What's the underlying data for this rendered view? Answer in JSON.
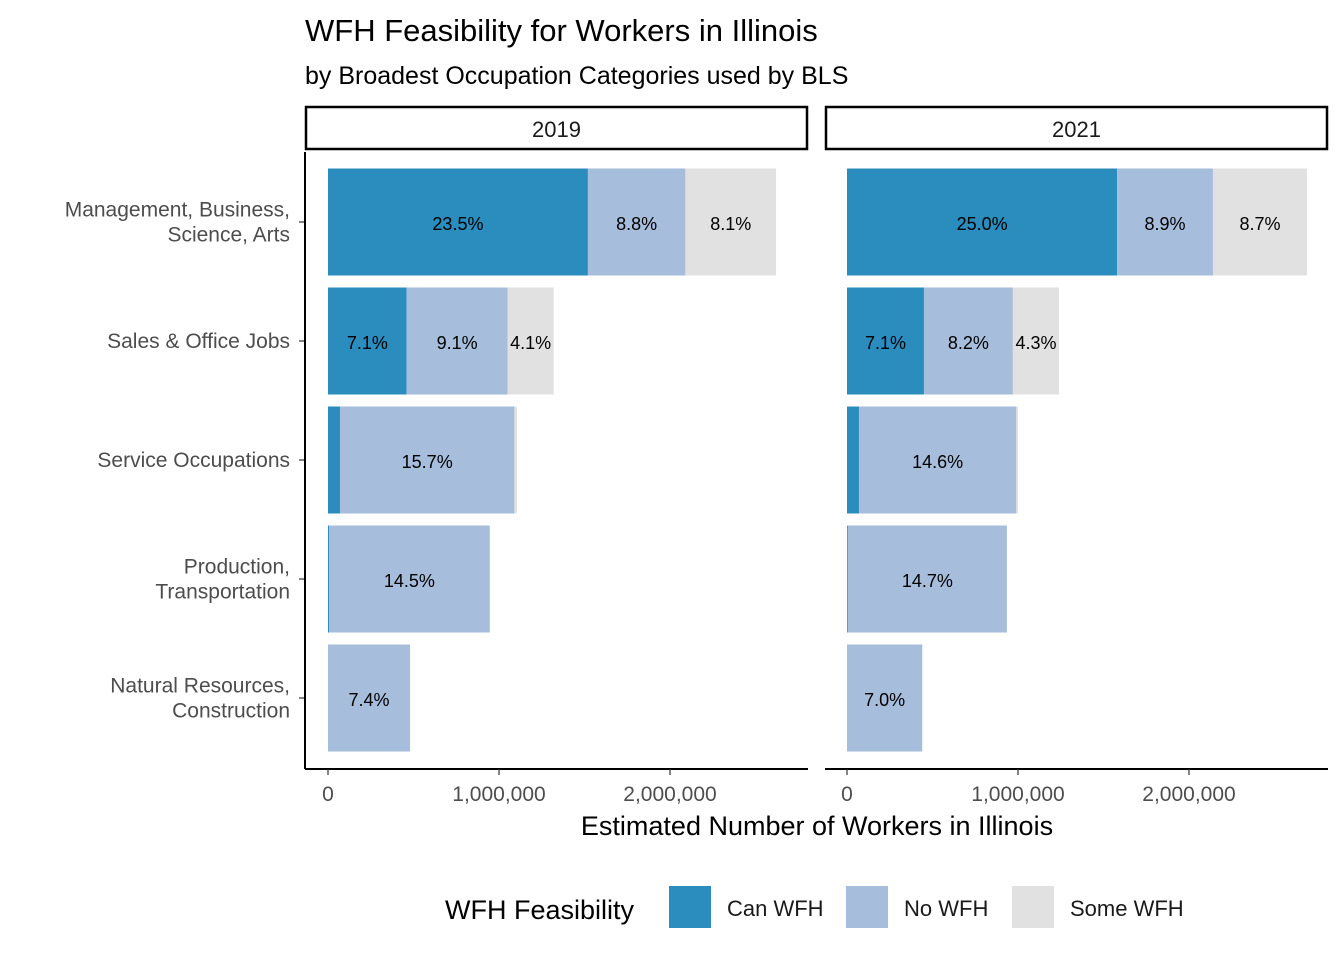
{
  "chart_data": {
    "type": "bar",
    "orientation": "horizontal",
    "stacked": true,
    "title": "WFH Feasibility for Workers in Illinois",
    "subtitle": "by Broadest Occupation Categories used by BLS",
    "xlabel": "Estimated Number of Workers in Illinois",
    "ylabel": "",
    "xlim": [
      0,
      2650000
    ],
    "xticks": [
      0,
      1000000,
      2000000
    ],
    "xtick_labels": [
      "0",
      "1,000,000",
      "2,000,000"
    ],
    "categories": [
      [
        "Management, Business,",
        "Science, Arts"
      ],
      [
        "Sales & Office Jobs"
      ],
      [
        "Service Occupations"
      ],
      [
        "Production,",
        "Transportation"
      ],
      [
        "Natural Resources,",
        "Construction"
      ]
    ],
    "legend": {
      "title": "WFH Feasibility",
      "position": "bottom",
      "entries": [
        {
          "name": "Can WFH",
          "color": "#2b8cbe"
        },
        {
          "name": "No WFH",
          "color": "#a6bddb"
        },
        {
          "name": "Some WFH",
          "color": "#e1e1e1"
        }
      ]
    },
    "panels": [
      {
        "label": "2019",
        "series": [
          {
            "name": "Can WFH",
            "values": [
              1520000,
              460000,
              70000,
              6000,
              0
            ],
            "labels": [
              "23.5%",
              "7.1%",
              "",
              "",
              ""
            ]
          },
          {
            "name": "No WFH",
            "values": [
              570000,
              590000,
              1020000,
              940000,
              480000
            ],
            "labels": [
              "8.8%",
              "9.1%",
              "15.7%",
              "14.5%",
              "7.4%"
            ]
          },
          {
            "name": "Some WFH",
            "values": [
              530000,
              270000,
              15000,
              0,
              0
            ],
            "labels": [
              "8.1%",
              "4.1%",
              "",
              "",
              ""
            ]
          }
        ]
      },
      {
        "label": "2021",
        "series": [
          {
            "name": "Can WFH",
            "values": [
              1580000,
              450000,
              70000,
              5000,
              0
            ],
            "labels": [
              "25.0%",
              "7.1%",
              "",
              "",
              ""
            ]
          },
          {
            "name": "No WFH",
            "values": [
              560000,
              520000,
              920000,
              930000,
              440000
            ],
            "labels": [
              "8.9%",
              "8.2%",
              "14.6%",
              "14.7%",
              "7.0%"
            ]
          },
          {
            "name": "Some WFH",
            "values": [
              550000,
              270000,
              10000,
              0,
              0
            ],
            "labels": [
              "8.7%",
              "4.3%",
              "",
              "",
              ""
            ]
          }
        ]
      }
    ]
  }
}
